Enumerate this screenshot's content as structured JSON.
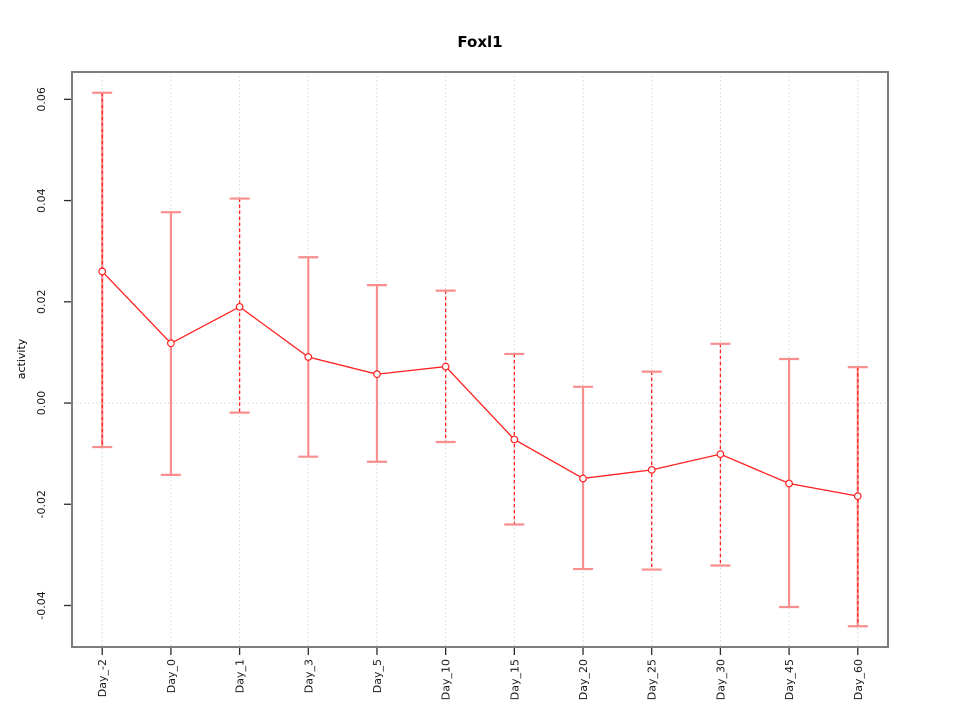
{
  "chart_data": {
    "type": "line",
    "title": "Foxl1",
    "xlabel": "",
    "ylabel": "activity",
    "categories": [
      "Day_-2",
      "Day_0",
      "Day_1",
      "Day_3",
      "Day_5",
      "Day_10",
      "Day_15",
      "Day_20",
      "Day_25",
      "Day_30",
      "Day_45",
      "Day_60"
    ],
    "series": [
      {
        "name": "activity",
        "values": [
          0.026,
          0.0118,
          0.019,
          0.0091,
          0.0057,
          0.0072,
          -0.0072,
          -0.0149,
          -0.0132,
          -0.0101,
          -0.0159,
          -0.0184
        ],
        "err_high": [
          0.0613,
          0.0377,
          0.0404,
          0.0288,
          0.0233,
          0.0222,
          0.0097,
          0.0032,
          0.0062,
          0.0117,
          0.0087,
          0.0071
        ],
        "err_low": [
          -0.0087,
          -0.0142,
          -0.0019,
          -0.0106,
          -0.0116,
          -0.0077,
          -0.024,
          -0.0328,
          -0.0329,
          -0.0321,
          -0.0403,
          -0.0441
        ]
      }
    ],
    "error_bar_styles": [
      "dashed-salmon",
      "solid",
      "dashed",
      "solid",
      "solid",
      "dashed",
      "dashed",
      "solid",
      "dashed",
      "dashed",
      "solid",
      "dashed-salmon"
    ],
    "ytick_values": [
      0.06,
      0.04,
      0.02,
      0.0,
      -0.02,
      -0.04
    ],
    "ytick_labels": [
      "0.06",
      "0.04",
      "0.02",
      "0.00",
      "-0.02",
      "-0.04"
    ],
    "ylim": [
      -0.0482,
      0.0654
    ],
    "grid": {
      "vertical": true,
      "horizontal_at_zero": true,
      "style": "dotted"
    },
    "legend": "none",
    "marker": "open-circle",
    "colors": {
      "line": "#ff2020",
      "point_stroke": "#ff2020",
      "point_fill": "#ffffff",
      "error_solid": "#f98e8e",
      "error_dashed": "#ff2020",
      "grid": "#d6d6d6",
      "border": "#7d7d7d",
      "tick": "#2b2b2b",
      "text": "#1a1a1a",
      "background": "#ffffff"
    }
  }
}
